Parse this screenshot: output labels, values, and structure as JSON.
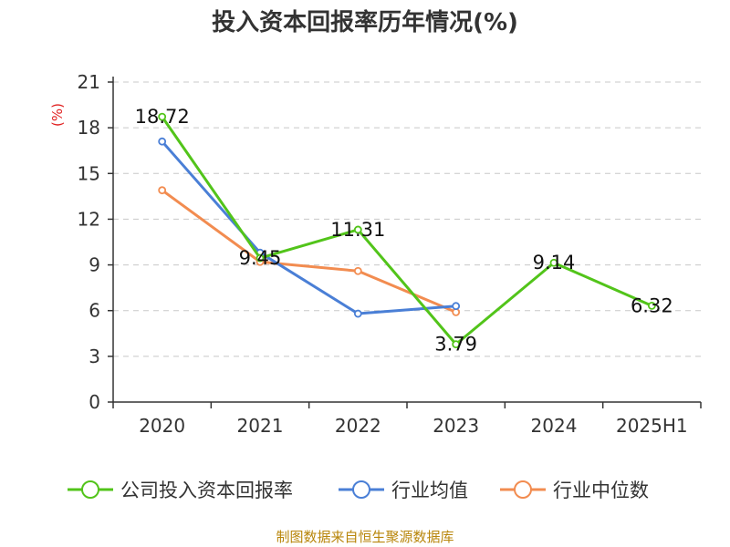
{
  "chart_data": {
    "type": "line",
    "title": "投入资本回报率历年情况(%)",
    "unit_label": "(%)",
    "categories": [
      "2020",
      "2021",
      "2022",
      "2023",
      "2024",
      "2025H1"
    ],
    "ylim": [
      0,
      21
    ],
    "yticks": [
      0,
      3,
      6,
      9,
      12,
      15,
      18,
      21
    ],
    "grid": true,
    "legend_position": "bottom",
    "series": [
      {
        "name": "公司投入资本回报率",
        "color": "#52c41a",
        "values": [
          18.72,
          9.45,
          11.31,
          3.79,
          9.14,
          6.32
        ],
        "labels": [
          "18.72",
          "9.45",
          "11.31",
          "3.79",
          "9.14",
          "6.32"
        ]
      },
      {
        "name": "行业均值",
        "color": "#4a7fd6",
        "values": [
          17.1,
          9.8,
          5.8,
          6.3,
          null,
          null
        ],
        "labels": []
      },
      {
        "name": "行业中位数",
        "color": "#f28c50",
        "values": [
          13.9,
          9.2,
          8.6,
          5.9,
          null,
          null
        ],
        "labels": []
      }
    ]
  },
  "footer": {
    "source": "制图数据来自恒生聚源数据库"
  }
}
